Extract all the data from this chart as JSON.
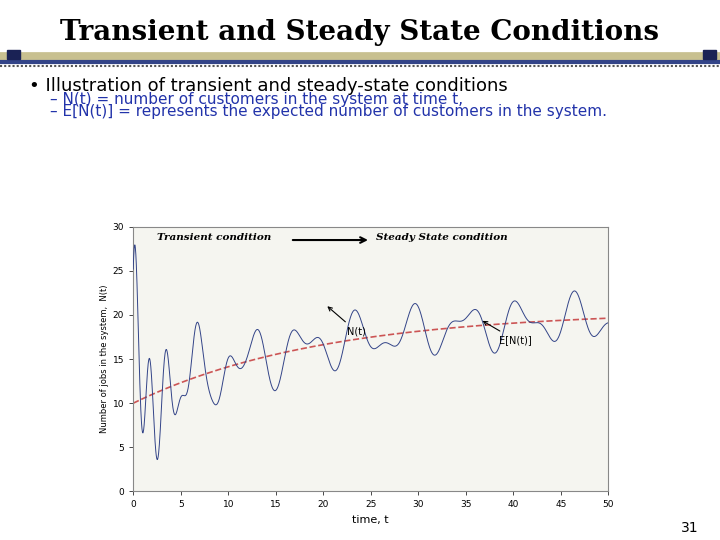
{
  "title": "Transient and Steady State Conditions",
  "title_fontsize": 20,
  "bg_color": "#ffffff",
  "separator_tan_color": "#c8c090",
  "separator_blue_color": "#334488",
  "separator_dark_color": "#1a2255",
  "bullet_text": "Illustration of transient and steady-state conditions",
  "sub1": "N(t) = number of customers in the system at time t,",
  "sub2": "E[N(t)] = represents the expected number of customers in the system.",
  "sub_color": "#2233aa",
  "bullet_fontsize": 13,
  "sub_fontsize": 11,
  "plot_ylabel": "Number of jobs in the system,  N(t)",
  "plot_xlabel": "time, t",
  "xlim": [
    0,
    50
  ],
  "ylim": [
    0,
    30
  ],
  "xticks": [
    0,
    5,
    10,
    15,
    20,
    25,
    30,
    35,
    40,
    45,
    50
  ],
  "yticks": [
    0,
    5,
    10,
    15,
    20,
    25,
    30
  ],
  "nt_color": "#334488",
  "ent_color": "#cc5555",
  "page_number": "31",
  "plot_bg": "#f5f5f0"
}
